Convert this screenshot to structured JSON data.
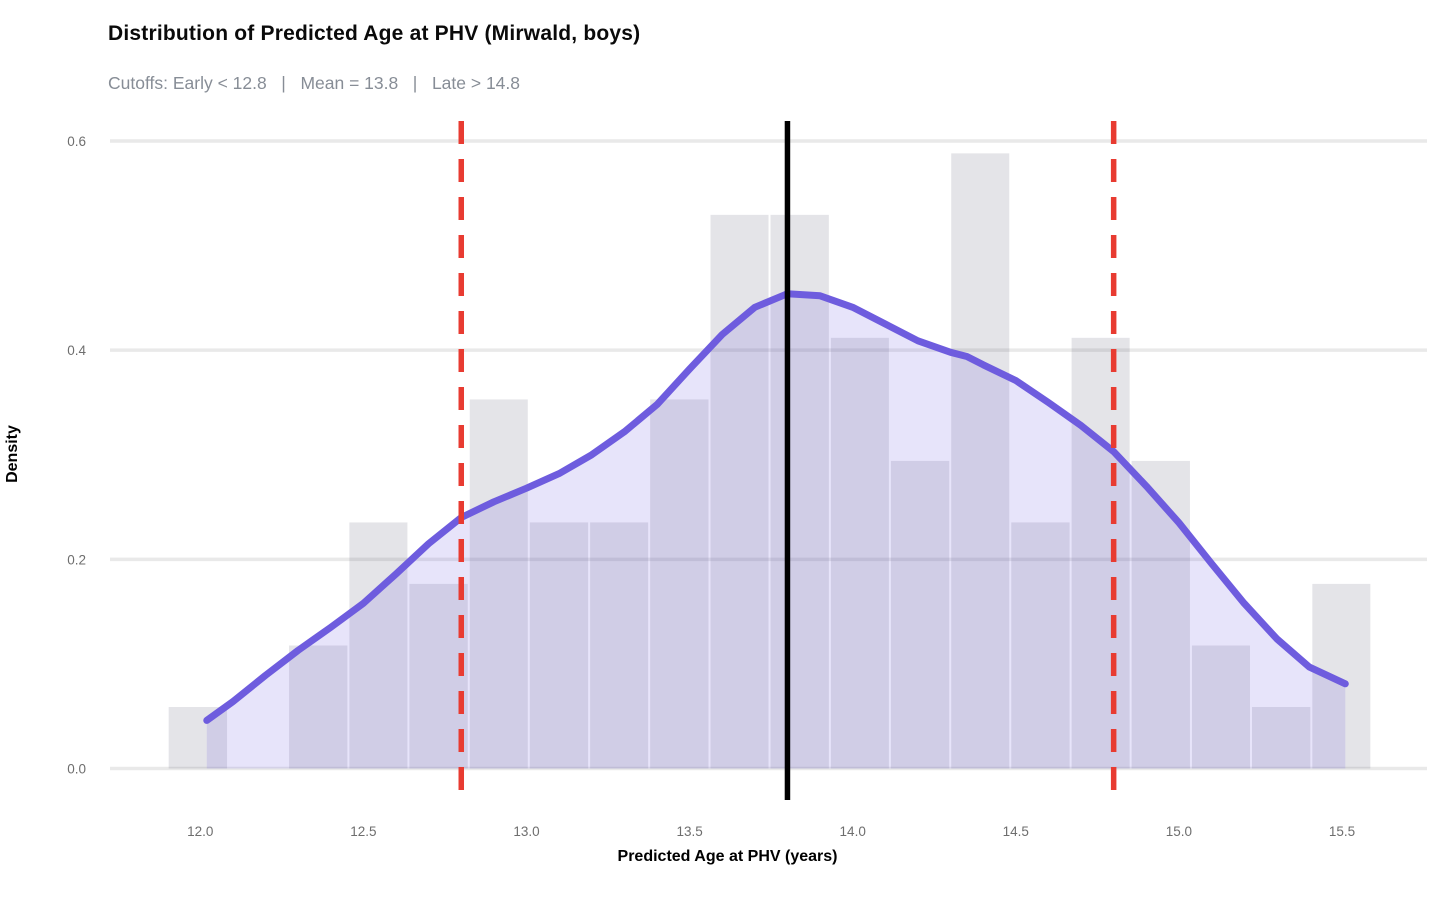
{
  "title": "Distribution of Predicted Age at PHV (Mirwald, boys)",
  "subtitle": "Cutoffs: Early < 12.8   |   Mean = 13.8   |   Late > 14.8",
  "axes": {
    "x_label": "Predicted Age at PHV (years)",
    "y_label": "Density",
    "x_ticks": [
      12.0,
      12.5,
      13.0,
      13.5,
      14.0,
      14.5,
      15.0,
      15.5
    ],
    "x_tick_labels": [
      "12.0",
      "12.5",
      "13.0",
      "13.5",
      "14.0",
      "14.5",
      "15.0",
      "15.5"
    ],
    "y_ticks": [
      0.0,
      0.2,
      0.4,
      0.6
    ],
    "y_tick_labels": [
      "0.0",
      "0.2",
      "0.4",
      "0.6"
    ],
    "xlim": [
      11.723,
      15.76
    ],
    "ylim": [
      0,
      0.62
    ]
  },
  "chart_data": {
    "type": "histogram+density",
    "grid": "horizontal-only",
    "histogram": {
      "bin_start": 11.9,
      "bin_width": 0.1845,
      "bin_edges": [
        11.9,
        12.085,
        12.269,
        12.454,
        12.638,
        12.823,
        13.007,
        13.192,
        13.376,
        13.561,
        13.745,
        13.93,
        14.114,
        14.299,
        14.483,
        14.668,
        14.852,
        15.037,
        15.221,
        15.406,
        15.59
      ],
      "counts": [
        1,
        0,
        2,
        4,
        3,
        6,
        4,
        4,
        6,
        9,
        9,
        7,
        5,
        10,
        4,
        7,
        5,
        2,
        1,
        3
      ],
      "densities": [
        0.0588,
        0,
        0.1176,
        0.2353,
        0.1765,
        0.3529,
        0.2353,
        0.2353,
        0.3529,
        0.5294,
        0.5294,
        0.4118,
        0.2941,
        0.5882,
        0.2353,
        0.4118,
        0.2941,
        0.1176,
        0.0588,
        0.1765
      ]
    },
    "density_curve": [
      [
        12.02,
        0.046
      ],
      [
        12.1,
        0.064
      ],
      [
        12.2,
        0.089
      ],
      [
        12.3,
        0.113
      ],
      [
        12.4,
        0.135
      ],
      [
        12.5,
        0.158
      ],
      [
        12.6,
        0.186
      ],
      [
        12.7,
        0.215
      ],
      [
        12.8,
        0.24
      ],
      [
        12.9,
        0.255
      ],
      [
        13.0,
        0.268
      ],
      [
        13.1,
        0.282
      ],
      [
        13.2,
        0.3
      ],
      [
        13.3,
        0.322
      ],
      [
        13.4,
        0.348
      ],
      [
        13.5,
        0.382
      ],
      [
        13.6,
        0.415
      ],
      [
        13.7,
        0.441
      ],
      [
        13.8,
        0.454
      ],
      [
        13.9,
        0.452
      ],
      [
        14.0,
        0.441
      ],
      [
        14.1,
        0.425
      ],
      [
        14.2,
        0.409
      ],
      [
        14.3,
        0.398
      ],
      [
        14.35,
        0.394
      ],
      [
        14.4,
        0.386
      ],
      [
        14.5,
        0.371
      ],
      [
        14.6,
        0.35
      ],
      [
        14.7,
        0.328
      ],
      [
        14.8,
        0.303
      ],
      [
        14.9,
        0.27
      ],
      [
        15.0,
        0.235
      ],
      [
        15.1,
        0.196
      ],
      [
        15.2,
        0.158
      ],
      [
        15.3,
        0.124
      ],
      [
        15.4,
        0.097
      ],
      [
        15.51,
        0.081
      ]
    ],
    "vlines": [
      {
        "name": "early-cutoff",
        "x": 12.8,
        "style": "dashed",
        "color": "#E83B31"
      },
      {
        "name": "mean",
        "x": 13.8,
        "style": "solid",
        "color": "#000000"
      },
      {
        "name": "late-cutoff",
        "x": 14.8,
        "style": "dashed",
        "color": "#E83B31"
      }
    ],
    "colors": {
      "bar_fill": "rgba(66,66,92,0.14)",
      "density_fill": "rgba(110,92,222,0.165)",
      "density_line": "#6E5CDE",
      "gridline": "#E9E9E9",
      "tick_text": "#6e6e6e"
    }
  }
}
